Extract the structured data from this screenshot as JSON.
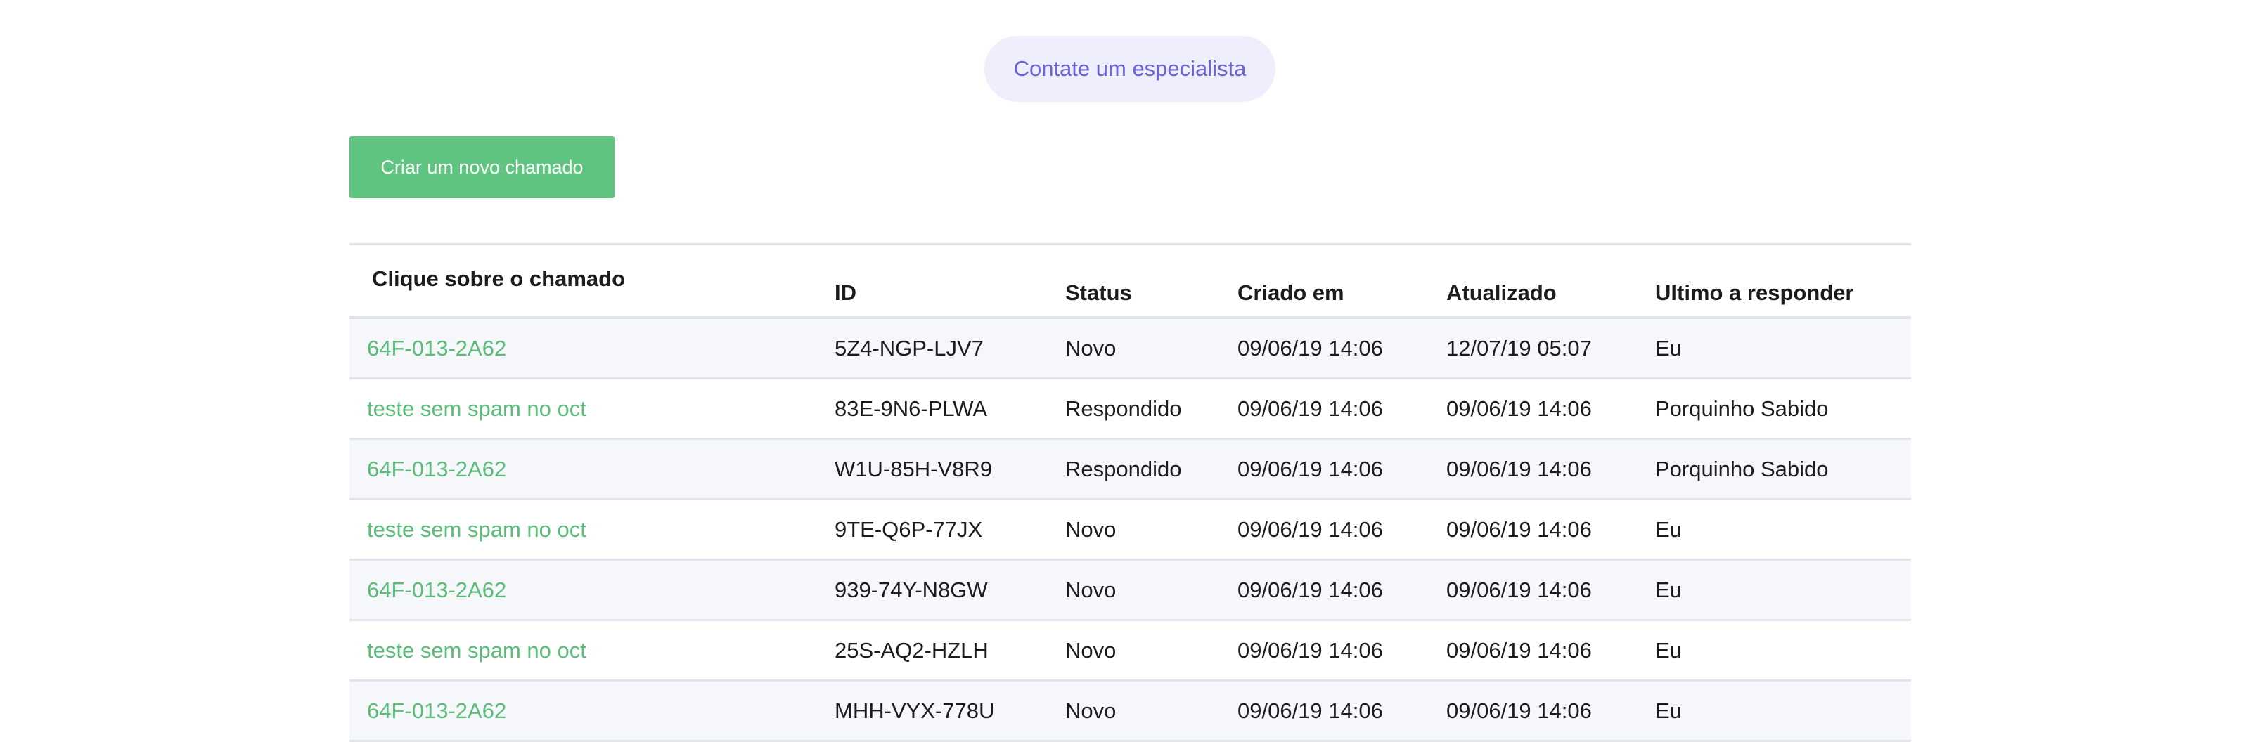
{
  "contact_button": "Contate um especialista",
  "new_ticket_button": "Criar um novo chamado",
  "colors": {
    "accent_green": "#5fc47f",
    "link_green": "#5abd79",
    "pill_bg": "#efeefc",
    "pill_text": "#6c63d9"
  },
  "table": {
    "headers": [
      "Clique sobre o chamado",
      "ID",
      "Status",
      "Criado em",
      "Atualizado",
      "Ultimo a responder"
    ],
    "rows": [
      [
        "64F-013-2A62",
        "5Z4-NGP-LJV7",
        "Novo",
        "09/06/19 14:06",
        "12/07/19 05:07",
        "Eu"
      ],
      [
        "teste sem spam no oct",
        "83E-9N6-PLWA",
        "Respondido",
        "09/06/19 14:06",
        "09/06/19 14:06",
        "Porquinho Sabido"
      ],
      [
        "64F-013-2A62",
        "W1U-85H-V8R9",
        "Respondido",
        "09/06/19 14:06",
        "09/06/19 14:06",
        "Porquinho Sabido"
      ],
      [
        "teste sem spam no oct",
        "9TE-Q6P-77JX",
        "Novo",
        "09/06/19 14:06",
        "09/06/19 14:06",
        "Eu"
      ],
      [
        "64F-013-2A62",
        "939-74Y-N8GW",
        "Novo",
        "09/06/19 14:06",
        "09/06/19 14:06",
        "Eu"
      ],
      [
        "teste sem spam no oct",
        "25S-AQ2-HZLH",
        "Novo",
        "09/06/19 14:06",
        "09/06/19 14:06",
        "Eu"
      ],
      [
        "64F-013-2A62",
        "MHH-VYX-778U",
        "Novo",
        "09/06/19 14:06",
        "09/06/19 14:06",
        "Eu"
      ]
    ]
  }
}
